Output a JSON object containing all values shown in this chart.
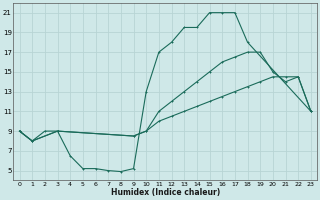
{
  "xlabel": "Humidex (Indice chaleur)",
  "xlim": [
    -0.5,
    23.5
  ],
  "ylim": [
    4,
    22
  ],
  "xticks": [
    0,
    1,
    2,
    3,
    4,
    5,
    6,
    7,
    8,
    9,
    10,
    11,
    12,
    13,
    14,
    15,
    16,
    17,
    18,
    19,
    20,
    21,
    22,
    23
  ],
  "yticks": [
    5,
    7,
    9,
    11,
    13,
    15,
    17,
    19,
    21
  ],
  "background_color": "#cfe8e8",
  "grid_color": "#b8d4d4",
  "line_color": "#1a6b5a",
  "curve1_x": [
    0,
    1,
    2,
    3,
    4,
    5,
    6,
    7,
    8,
    9,
    10,
    11,
    12,
    13,
    14,
    15,
    16,
    17,
    18,
    23
  ],
  "curve1_y": [
    9,
    8,
    9,
    9,
    6.5,
    5.2,
    5.2,
    5.0,
    4.9,
    5.2,
    13,
    17,
    18,
    19.5,
    19.5,
    21,
    21,
    21,
    18,
    11
  ],
  "curve2_x": [
    0,
    1,
    3,
    9,
    10,
    11,
    12,
    13,
    14,
    15,
    16,
    17,
    18,
    19,
    20,
    21,
    22,
    23
  ],
  "curve2_y": [
    9,
    8,
    9,
    8.5,
    9,
    11,
    12,
    13,
    14,
    15,
    16,
    16.5,
    17,
    17,
    15,
    14,
    14.5,
    11
  ],
  "curve3_x": [
    0,
    1,
    3,
    9,
    10,
    11,
    12,
    13,
    14,
    15,
    16,
    17,
    18,
    19,
    20,
    21,
    22,
    23
  ],
  "curve3_y": [
    9,
    8,
    9,
    8.5,
    9,
    10,
    10.5,
    11,
    11.5,
    12,
    12.5,
    13,
    13.5,
    14,
    14.5,
    14.5,
    14.5,
    11
  ]
}
